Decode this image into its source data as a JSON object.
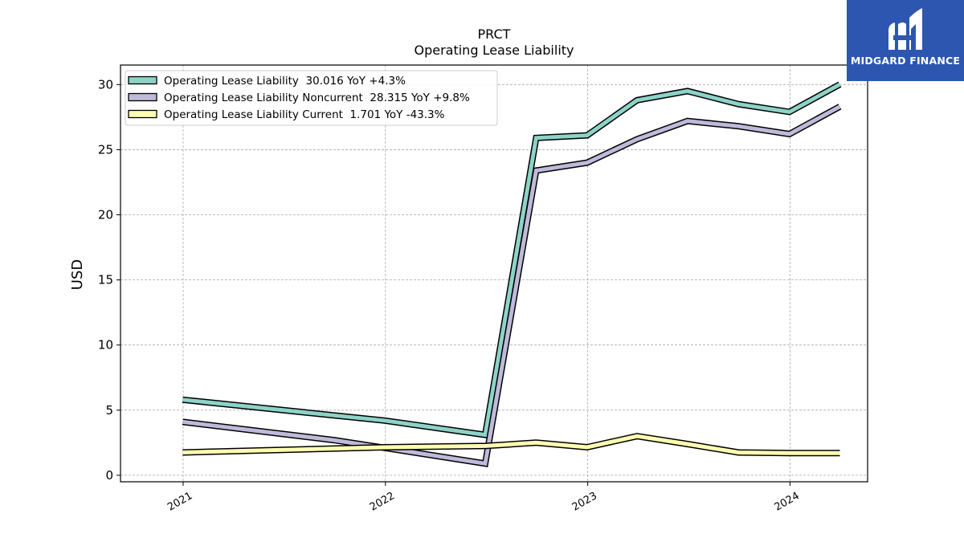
{
  "chart_data": {
    "type": "line",
    "title": "PRCT",
    "subtitle": "Operating Lease Liability",
    "ylabel": "USD",
    "xlabel": "",
    "ylim": [
      -0.5,
      31.5
    ],
    "xlim": [
      "2020-09-10",
      "2024-05-20"
    ],
    "y_ticks": [
      0,
      5,
      10,
      15,
      20,
      25,
      30
    ],
    "x_ticks": [
      "2021-01-01",
      "2022-01-01",
      "2023-01-01",
      "2024-01-01"
    ],
    "x_tick_labels": [
      "2021",
      "2022",
      "2023",
      "2024"
    ],
    "grid": true,
    "legend_position": "top-left",
    "series": [
      {
        "name": "Operating Lease Liability  30.016 YoY +4.3%",
        "color": "#8dd3c7",
        "x": [
          "2020-12-31",
          "2021-09-30",
          "2021-12-31",
          "2022-06-30",
          "2022-09-30",
          "2022-12-31",
          "2023-03-31",
          "2023-06-30",
          "2023-09-30",
          "2023-12-31",
          "2024-03-31"
        ],
        "y": [
          5.8,
          4.6,
          4.2,
          3.1,
          25.9,
          26.1,
          28.8,
          29.5,
          28.5,
          27.9,
          30.016
        ]
      },
      {
        "name": "Operating Lease Liability Noncurrent  28.315 YoY +9.8%",
        "color": "#bebada",
        "x": [
          "2020-12-31",
          "2021-09-30",
          "2021-12-31",
          "2022-06-30",
          "2022-09-30",
          "2022-12-31",
          "2023-03-31",
          "2023-06-30",
          "2023-09-30",
          "2023-12-31",
          "2024-03-31"
        ],
        "y": [
          4.1,
          2.7,
          2.1,
          0.9,
          23.4,
          24.0,
          25.8,
          27.2,
          26.8,
          26.2,
          28.315
        ]
      },
      {
        "name": "Operating Lease Liability Current  1.701 YoY -43.3%",
        "color": "#ffffb3",
        "x": [
          "2020-12-31",
          "2021-09-30",
          "2021-12-31",
          "2022-06-30",
          "2022-09-30",
          "2022-12-31",
          "2023-03-31",
          "2023-06-30",
          "2023-09-30",
          "2023-12-31",
          "2024-03-31"
        ],
        "y": [
          1.75,
          2.05,
          2.15,
          2.25,
          2.5,
          2.15,
          3.0,
          2.4,
          1.75,
          1.7,
          1.701
        ]
      }
    ]
  },
  "logo": {
    "text": "MIDGARD FINANCE",
    "background": "#2c56b0"
  }
}
